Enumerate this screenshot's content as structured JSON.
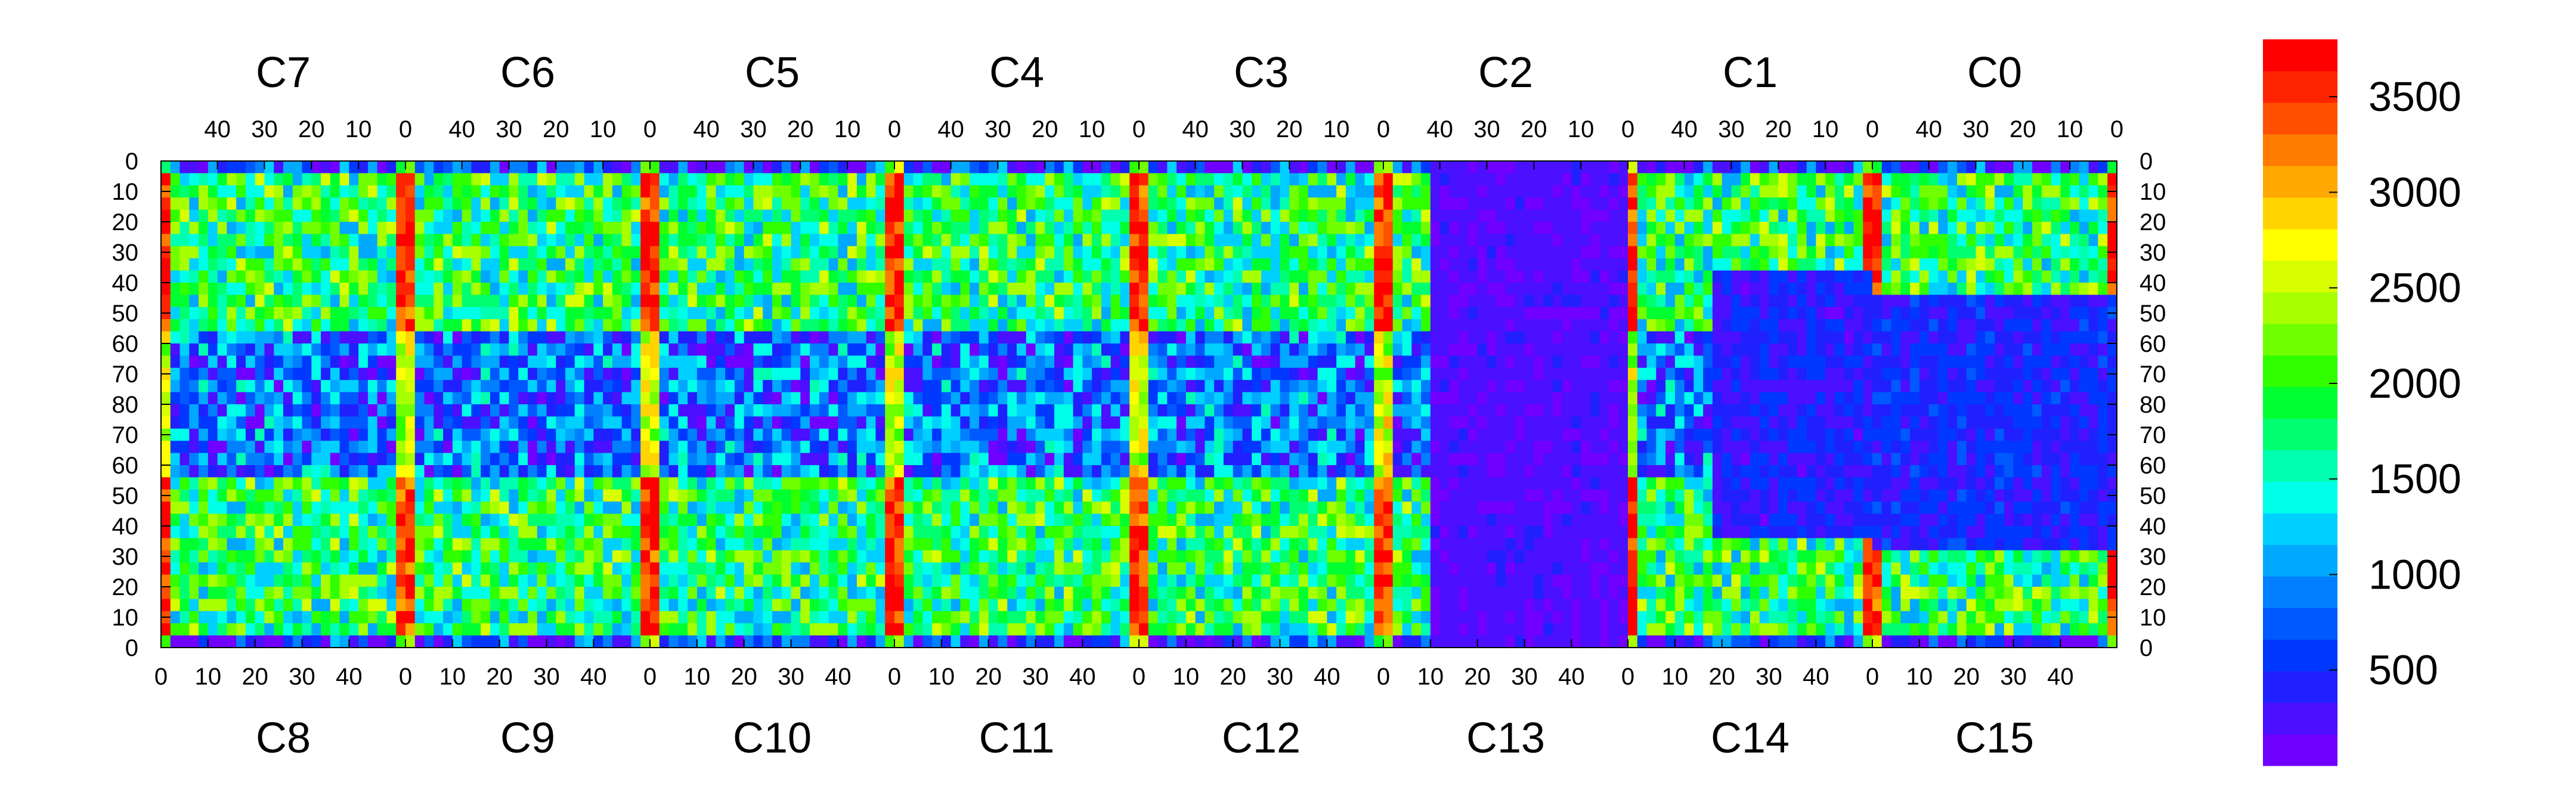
{
  "chart_data": {
    "type": "heatmap",
    "title": "",
    "colorbar": {
      "min": 0,
      "max": 3800,
      "ticks": [
        "500",
        "1000",
        "1500",
        "2000",
        "2500",
        "3000",
        "3500"
      ],
      "tick_values": [
        500,
        1000,
        1500,
        2000,
        2500,
        3000,
        3500
      ],
      "colors": [
        "#7000ff",
        "#4a10ff",
        "#2020ff",
        "#0038ff",
        "#0058ff",
        "#0080ff",
        "#00a8ff",
        "#00d0ff",
        "#00ffe8",
        "#00ffb0",
        "#00ff70",
        "#00ff30",
        "#30ff00",
        "#70ff00",
        "#a8ff00",
        "#d8ff00",
        "#ffff00",
        "#ffd400",
        "#ffa800",
        "#ff7c00",
        "#ff5000",
        "#ff2400",
        "#ff0000"
      ]
    },
    "top_columns": [
      "C7",
      "C6",
      "C5",
      "C4",
      "C3",
      "C2",
      "C1",
      "C0"
    ],
    "bottom_columns": [
      "C8",
      "C9",
      "C10",
      "C11",
      "C12",
      "C13",
      "C14",
      "C15"
    ],
    "top_x_ticks": [
      "40",
      "30",
      "20",
      "10",
      "0"
    ],
    "top_x_tick_values": [
      40,
      30,
      20,
      10,
      0
    ],
    "bottom_x_ticks": [
      "0",
      "10",
      "20",
      "30",
      "40"
    ],
    "bottom_x_tick_values": [
      0,
      10,
      20,
      30,
      40
    ],
    "x_range_per_chip": [
      0,
      52
    ],
    "y_ticks": [
      "0",
      "10",
      "20",
      "30",
      "40",
      "50",
      "60",
      "70",
      "80",
      "70",
      "60",
      "50",
      "40",
      "30",
      "20",
      "10",
      "0"
    ],
    "y_range_half": [
      0,
      80
    ],
    "grid": false,
    "legend_position": "right"
  }
}
